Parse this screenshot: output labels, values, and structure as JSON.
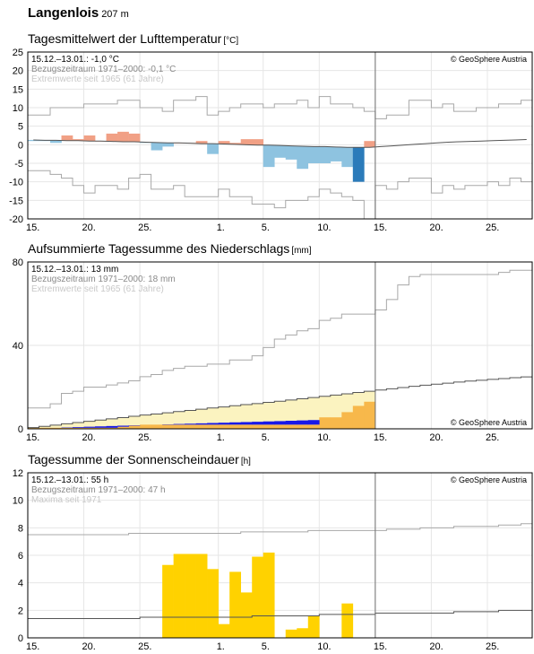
{
  "station": {
    "name": "Langenlois",
    "elevation": "207 m"
  },
  "x_axis": {
    "tick_labels": [
      "15.",
      "20.",
      "25.",
      "1.",
      "5.",
      "10.",
      "15.",
      "20.",
      "25."
    ],
    "tick_days": [
      0,
      5,
      10,
      17,
      21,
      26,
      31,
      36,
      41
    ]
  },
  "chart_data": [
    {
      "type": "bar",
      "title": "Tagesmittelwert der Lufttemperatur",
      "unit": "[°C]",
      "ylim": [
        -20,
        25
      ],
      "yticks": [
        -20,
        -15,
        -10,
        -5,
        0,
        5,
        10,
        15,
        20,
        25
      ],
      "legend": [
        "15.12.–13.01.: -1,0 °C",
        "Bezugszeitraum 1971–2000: -0,1 °C",
        "Extremwerte seit 1965 (61 Jahre)"
      ],
      "copyright": "© GeoSphere Austria",
      "current_day_index": 30,
      "series": [
        {
          "name": "Tagesmittel",
          "values": [
            1.0,
            1.0,
            0.5,
            2.5,
            1.5,
            2.5,
            1.0,
            3.0,
            3.5,
            3.0,
            0.5,
            -1.5,
            -0.5,
            0.5,
            0.5,
            1.0,
            -2.5,
            1.0,
            0.5,
            1.5,
            1.5,
            -6.0,
            -3.5,
            -4.0,
            -6.5,
            -5.0,
            -5.0,
            -4.5,
            -6.0,
            -10.0,
            1.0
          ]
        },
        {
          "name": "Bezugszeitraum",
          "values": [
            1.3,
            1.2,
            1.2,
            1.1,
            1.1,
            1.0,
            1.0,
            0.9,
            0.8,
            0.8,
            0.7,
            0.6,
            0.5,
            0.5,
            0.4,
            0.3,
            0.3,
            0.2,
            0.1,
            0.0,
            -0.1,
            -0.1,
            -0.2,
            -0.3,
            -0.4,
            -0.5,
            -0.5,
            -0.6,
            -0.7,
            -0.7,
            -0.7,
            -0.5,
            -0.3,
            -0.1,
            0.1,
            0.3,
            0.5,
            0.7,
            0.8,
            0.9,
            1.0,
            1.1,
            1.2,
            1.3,
            1.4
          ]
        },
        {
          "name": "Maximum",
          "values": [
            8,
            8,
            10,
            10,
            10,
            11,
            11,
            11,
            12,
            12,
            10,
            10,
            9,
            12,
            12,
            13,
            8,
            9,
            10,
            11,
            11,
            10,
            11,
            11,
            12,
            10,
            13,
            11,
            11,
            10,
            9,
            7,
            8,
            8,
            12,
            12,
            10,
            11,
            9,
            9,
            10,
            10,
            11,
            11,
            12
          ]
        },
        {
          "name": "Minimum",
          "values": [
            -7,
            -7,
            -8,
            -9,
            -11,
            -13,
            -11,
            -11,
            -12,
            -9,
            -8,
            -12,
            -12,
            -11,
            -14,
            -14,
            -14,
            -12,
            -14,
            -14,
            -16,
            -16,
            -17,
            -15,
            -15,
            -14,
            -12,
            -13,
            -14,
            -15,
            -20,
            -11,
            -12,
            -10,
            -9,
            -9,
            -13,
            -11,
            -12,
            -11,
            -11,
            -10,
            -11,
            -9,
            -10
          ]
        }
      ]
    },
    {
      "type": "area",
      "title": "Aufsummierte Tagessumme des Niederschlags",
      "unit": "[mm]",
      "ylim": [
        0,
        80
      ],
      "yticks": [
        0,
        40,
        80
      ],
      "legend": [
        "15.12.–13.01.: 13 mm",
        "Bezugszeitraum 1971–2000: 18 mm",
        "Extremwerte seit 1965 (61 Jahre)"
      ],
      "copyright": "© GeoSphere Austria",
      "current_day_index": 30,
      "series": [
        {
          "name": "Aufsummiert",
          "values": [
            0.5,
            0.5,
            0.5,
            0.5,
            0.5,
            0.5,
            0.5,
            0.5,
            1.0,
            1.5,
            2.0,
            2.0,
            2.0,
            2.0,
            2.0,
            2.0,
            2.0,
            2.0,
            2.0,
            2.0,
            2.0,
            2.0,
            2.0,
            2.0,
            2.0,
            2.0,
            5.5,
            5.5,
            8.0,
            11.0,
            13.0
          ]
        },
        {
          "name": "Bezugszeitraum",
          "values": [
            0.6,
            1.2,
            1.8,
            2.4,
            3.0,
            3.6,
            4.2,
            4.8,
            5.4,
            6.0,
            6.6,
            7.1,
            7.7,
            8.3,
            8.8,
            9.4,
            10.0,
            10.5,
            11.1,
            11.6,
            12.1,
            12.7,
            13.2,
            13.8,
            14.4,
            15.0,
            15.6,
            16.2,
            16.8,
            17.4,
            18.0,
            18.6,
            19.2,
            19.8,
            20.4,
            20.9,
            21.4,
            21.9,
            22.4,
            22.9,
            23.3,
            23.7,
            24.1,
            24.5,
            24.9
          ]
        },
        {
          "name": "Maximum",
          "values": [
            10,
            10,
            12,
            17,
            18,
            20,
            20,
            21,
            22,
            23,
            25,
            26,
            28,
            29,
            30,
            30,
            31,
            31,
            33,
            33,
            35,
            39,
            43,
            45,
            47,
            48,
            52,
            53,
            55,
            55,
            55,
            57,
            62,
            69,
            73,
            74,
            74,
            74,
            74,
            74,
            74,
            74,
            75,
            76,
            76
          ]
        },
        {
          "name": "Minimum",
          "values": [
            0,
            0,
            0,
            0,
            0,
            0,
            0,
            0,
            0,
            0,
            0,
            0,
            0,
            0,
            0,
            0,
            0,
            0,
            0,
            0,
            0,
            0,
            0,
            0,
            0,
            0,
            0,
            0,
            0,
            0,
            0,
            0,
            0,
            0,
            0,
            0,
            0,
            0,
            0,
            0,
            0,
            0,
            0,
            0,
            0
          ]
        }
      ]
    },
    {
      "type": "bar",
      "title": "Tagessumme der Sonnenscheindauer",
      "unit": "[h]",
      "ylim": [
        0,
        12
      ],
      "yticks": [
        0,
        2,
        4,
        6,
        8,
        10,
        12
      ],
      "legend": [
        "15.12.–13.01.: 55 h",
        "Bezugszeitraum 1971–2000: 47 h",
        "Maxima seit 1971"
      ],
      "copyright": "© GeoSphere Austria",
      "current_day_index": 30,
      "series": [
        {
          "name": "Tagessumme",
          "values": [
            0,
            0,
            0,
            0,
            0,
            0,
            0,
            0,
            0,
            0,
            0,
            0,
            5.3,
            6.1,
            6.1,
            6.1,
            5.0,
            1.0,
            4.8,
            3.3,
            5.9,
            6.2,
            0,
            0.6,
            0.7,
            1.6,
            0,
            0,
            2.5,
            0,
            0
          ]
        },
        {
          "name": "Bezugszeitraum",
          "values": [
            1.4,
            1.4,
            1.4,
            1.4,
            1.4,
            1.4,
            1.4,
            1.4,
            1.4,
            1.4,
            1.5,
            1.5,
            1.5,
            1.5,
            1.5,
            1.5,
            1.5,
            1.5,
            1.5,
            1.5,
            1.6,
            1.6,
            1.6,
            1.6,
            1.6,
            1.6,
            1.7,
            1.7,
            1.7,
            1.7,
            1.7,
            1.8,
            1.8,
            1.8,
            1.8,
            1.8,
            1.8,
            1.8,
            1.9,
            1.9,
            1.9,
            1.9,
            2.0,
            2.0,
            2.0
          ]
        },
        {
          "name": "Maximum",
          "values": [
            7.5,
            7.5,
            7.5,
            7.5,
            7.5,
            7.5,
            7.5,
            7.5,
            7.5,
            7.6,
            7.6,
            7.6,
            7.6,
            7.6,
            7.6,
            7.6,
            7.6,
            7.6,
            7.6,
            7.7,
            7.7,
            7.7,
            7.7,
            7.7,
            7.7,
            7.8,
            7.8,
            7.8,
            7.8,
            7.8,
            7.8,
            7.8,
            7.9,
            7.9,
            7.9,
            8.0,
            8.0,
            8.0,
            8.1,
            8.1,
            8.1,
            8.1,
            8.2,
            8.2,
            8.3
          ]
        }
      ]
    }
  ],
  "colors": {
    "temp_warm": "#f1a085",
    "temp_cold": "#8ec3e0",
    "temp_cold_record": "#2b7bba",
    "precip_fill": "#fbf3c0",
    "precip_ref": "#f7b84b",
    "precip_deficit": "#1818e8",
    "sun_fill": "#ffd200",
    "extreme_line": "#a8a8a8",
    "grid": "#e6e6e6",
    "current_line": "#707070"
  }
}
